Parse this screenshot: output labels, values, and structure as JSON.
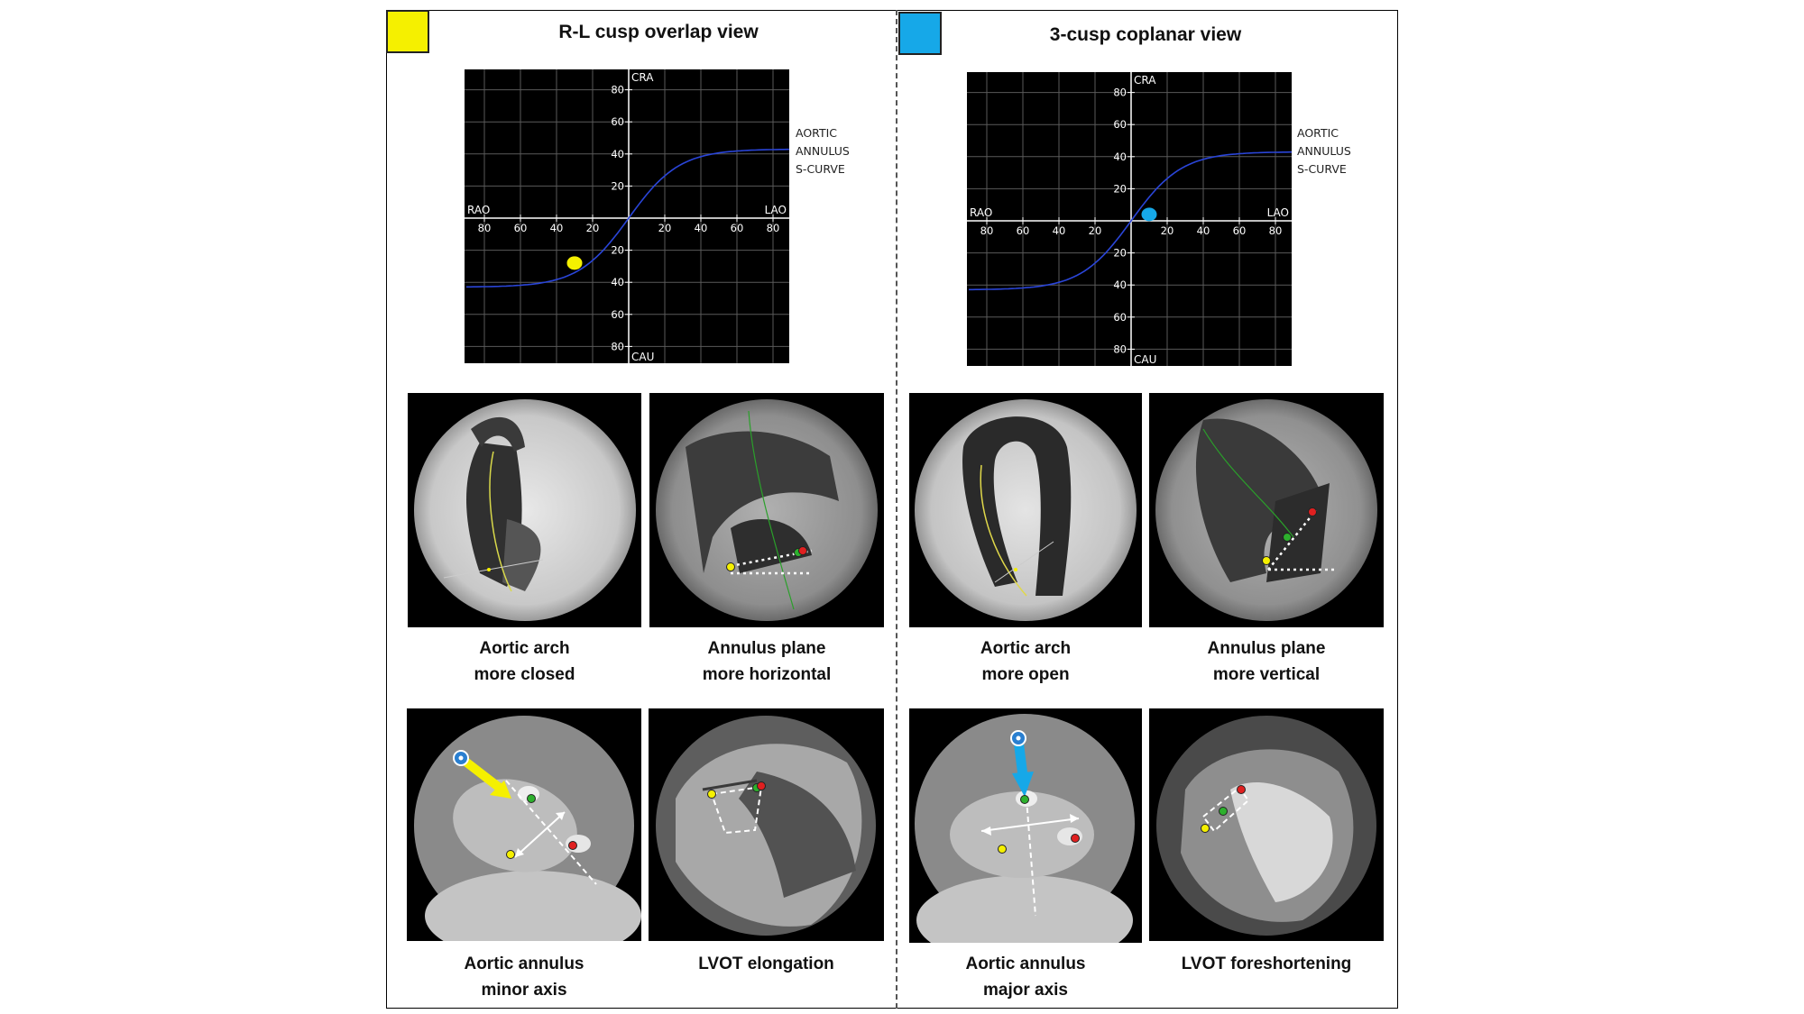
{
  "colors": {
    "yellow_marker": "#f5f000",
    "blue_marker": "#16a8e8",
    "curve": "#2a45d8",
    "graph_bg": "#000000",
    "grid": "#5a5a5a"
  },
  "left": {
    "title": "R-L cusp overlap view",
    "swatch_color": "#f5f000",
    "graph": {
      "top_label": "CRA",
      "bottom_label": "CAU",
      "left_label": "RAO",
      "right_label": "LAO",
      "x_ticks_left": [
        "80",
        "60",
        "40",
        "20"
      ],
      "x_ticks_right": [
        "20",
        "40",
        "60",
        "80"
      ],
      "y_ticks_up": [
        "80",
        "60",
        "40",
        "20"
      ],
      "y_ticks_down": [
        "20",
        "40",
        "60",
        "80"
      ],
      "marker": {
        "x": -30,
        "y": -28,
        "color": "#f5f000"
      }
    },
    "curve_label": [
      "AORTIC",
      "ANNULUS",
      "S-CURVE"
    ],
    "panels": [
      {
        "name": "aortic-arch",
        "caption": [
          "Aortic arch",
          "more closed"
        ]
      },
      {
        "name": "annulus-plane",
        "caption": [
          "Annulus plane",
          "more horizontal"
        ]
      },
      {
        "name": "aortic-annulus",
        "caption": [
          "Aortic annulus",
          "minor axis"
        ]
      },
      {
        "name": "lvot",
        "caption": [
          "LVOT elongation"
        ]
      }
    ]
  },
  "right": {
    "title": "3-cusp coplanar view",
    "swatch_color": "#16a8e8",
    "graph": {
      "top_label": "CRA",
      "bottom_label": "CAU",
      "left_label": "RAO",
      "right_label": "LAO",
      "x_ticks_left": [
        "80",
        "60",
        "40",
        "20"
      ],
      "x_ticks_right": [
        "20",
        "40",
        "60",
        "80"
      ],
      "y_ticks_up": [
        "80",
        "60",
        "40",
        "20"
      ],
      "y_ticks_down": [
        "20",
        "40",
        "60",
        "80"
      ],
      "marker": {
        "x": 10,
        "y": 4,
        "color": "#16a8e8"
      }
    },
    "curve_label": [
      "AORTIC",
      "ANNULUS",
      "S-CURVE"
    ],
    "panels": [
      {
        "name": "aortic-arch",
        "caption": [
          "Aortic arch",
          "more open"
        ]
      },
      {
        "name": "annulus-plane",
        "caption": [
          "Annulus plane",
          "more vertical"
        ]
      },
      {
        "name": "aortic-annulus",
        "caption": [
          "Aortic annulus",
          "major axis"
        ]
      },
      {
        "name": "lvot",
        "caption": [
          "LVOT foreshortening"
        ]
      }
    ]
  }
}
